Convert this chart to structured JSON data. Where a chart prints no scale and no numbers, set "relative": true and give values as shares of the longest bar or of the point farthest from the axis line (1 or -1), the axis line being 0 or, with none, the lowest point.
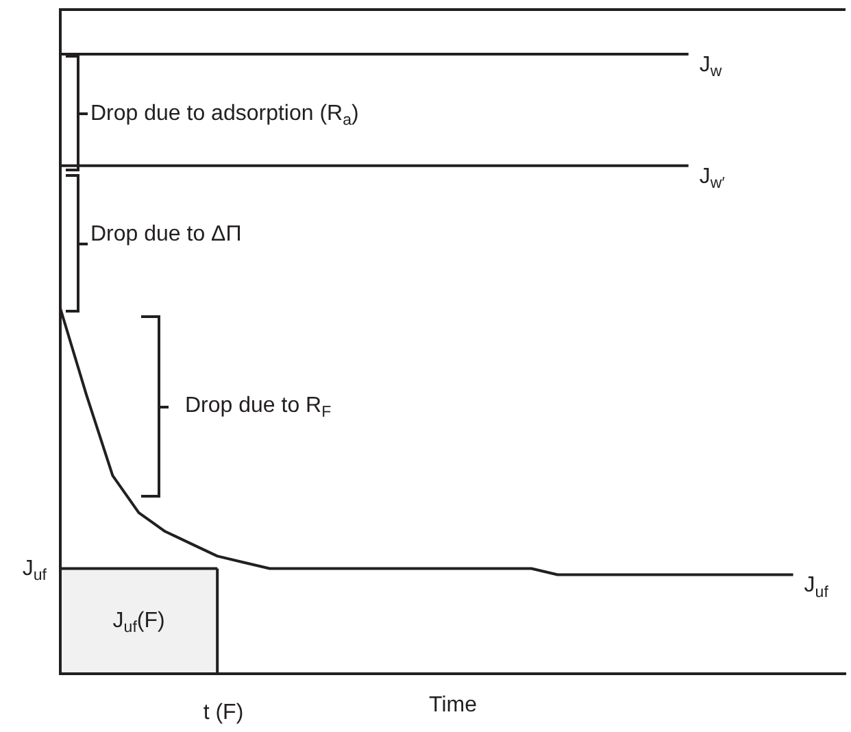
{
  "chart_data": {
    "type": "line",
    "relative": true,
    "xlabel": "Time",
    "legend": false,
    "grid": false,
    "marker": "none",
    "line_style": "solid",
    "categories": [
      null,
      null,
      null,
      null,
      null,
      null,
      null,
      null,
      null,
      null,
      null,
      null,
      null,
      null,
      null,
      null,
      null,
      null,
      null,
      null,
      null,
      null,
      null,
      null,
      null,
      null,
      null,
      null,
      null,
      null,
      null
    ],
    "series": [
      {
        "name": "J$_{w}$",
        "color": "#231f20",
        "values": [
          1,
          1,
          1,
          1,
          1,
          1,
          1,
          1,
          1,
          1,
          1,
          1,
          1,
          1,
          1,
          1,
          1,
          1,
          1,
          1,
          1,
          1,
          1,
          1,
          1,
          null,
          null,
          null,
          null,
          null,
          null
        ]
      },
      {
        "name": "J$_{w′}$",
        "color": "#231f20",
        "values": [
          0.82,
          0.82,
          0.82,
          0.82,
          0.82,
          0.82,
          0.82,
          0.82,
          0.82,
          0.82,
          0.82,
          0.82,
          0.82,
          0.82,
          0.82,
          0.82,
          0.82,
          0.82,
          0.82,
          0.82,
          0.82,
          0.82,
          0.82,
          0.82,
          0.82,
          null,
          null,
          null,
          null,
          null,
          null
        ]
      },
      {
        "name": "J$_{uf}$",
        "color": "#231f20",
        "values": [
          0.59,
          0.45,
          0.32,
          0.26,
          0.23,
          0.21,
          0.19,
          0.18,
          0.17,
          0.17,
          0.17,
          0.17,
          0.17,
          0.17,
          0.17,
          0.17,
          0.17,
          0.17,
          0.17,
          0.16,
          0.16,
          0.16,
          0.16,
          0.16,
          0.16,
          0.16,
          0.16,
          0.16,
          0.16,
          null,
          null
        ]
      },
      {
        "name": "J$_{uf}$(F)",
        "type": "area",
        "color": "#231f20",
        "values": [
          0.17,
          0.17,
          0.17,
          0.17,
          0.17,
          0.17,
          0.17,
          null,
          null,
          null,
          null,
          null,
          null,
          null,
          null,
          null,
          null,
          null,
          null,
          null,
          null,
          null,
          null,
          null,
          null,
          null,
          null,
          null,
          null,
          null,
          null
        ]
      }
    ],
    "annotations": [
      "Drop due to adsorption (R$_{a}$)",
      "Drop due to ΔΠ",
      "Drop due to R$_{F}$",
      "J$_{uf}$",
      "t (F)"
    ]
  }
}
